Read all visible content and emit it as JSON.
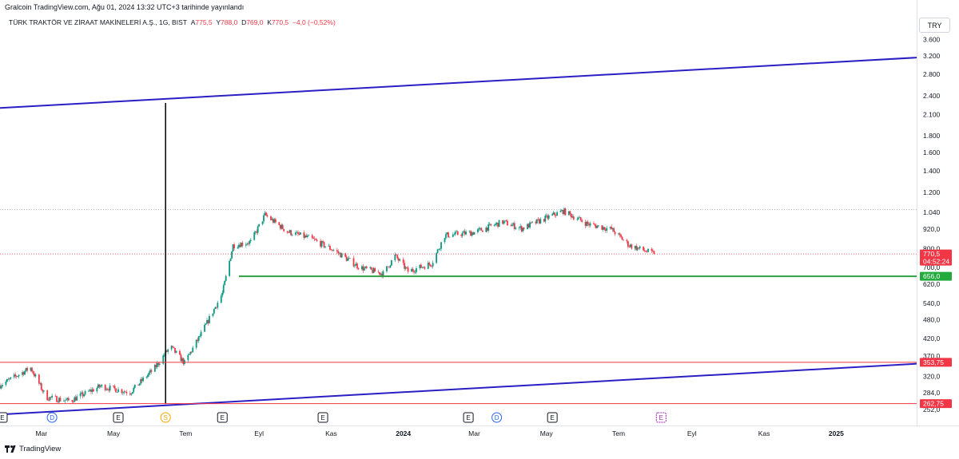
{
  "header": {
    "published": "Gralcoin TradingView.com, Ağu 01, 2024 13:32 UTC+3 tarihinde yayınlandı",
    "symbol": "TÜRK TRAKTÖR VE ZİRAAT MAKİNELERİ A.Ş., 1G, BIST",
    "ohlc": [
      {
        "label": "A",
        "value": "775,5"
      },
      {
        "label": "Y",
        "value": "788,0"
      },
      {
        "label": "D",
        "value": "769,0"
      },
      {
        "label": "K",
        "value": "770,5"
      }
    ],
    "change": "−4,0 (−0,52%)",
    "currency": "TRY"
  },
  "branding": "TradingView",
  "colors": {
    "up": "#089981",
    "down": "#f23645",
    "channel": "#2a1fc4",
    "support": "#2ea043",
    "hline": "#f23645",
    "vline": "#000000",
    "label_green": "#22ab3c",
    "label_red": "#f23645"
  },
  "chart_data": {
    "type": "candlestick",
    "scale": "log",
    "ylim": [
      242,
      3800
    ],
    "y_ticks": [
      "3.600",
      "3.200",
      "2.800",
      "2.400",
      "2.100",
      "1.800",
      "1.600",
      "1.400",
      "1.200",
      "1.040",
      "920,0",
      "800,0",
      "700,0",
      "620,0",
      "540,0",
      "480,0",
      "420,0",
      "370,0",
      "320,0",
      "284,0",
      "252,0"
    ],
    "x_ticks": [
      {
        "label": "Mar",
        "date": "2023-03-01"
      },
      {
        "label": "May",
        "date": "2023-05-01"
      },
      {
        "label": "Tem",
        "date": "2023-07-01"
      },
      {
        "label": "Eyl",
        "date": "2023-09-01"
      },
      {
        "label": "Kas",
        "date": "2023-11-01"
      },
      {
        "label": "2024",
        "date": "2024-01-01",
        "bold": true
      },
      {
        "label": "Mar",
        "date": "2024-03-01"
      },
      {
        "label": "May",
        "date": "2024-05-01"
      },
      {
        "label": "Tem",
        "date": "2024-07-01"
      },
      {
        "label": "Eyl",
        "date": "2024-09-01"
      },
      {
        "label": "Kas",
        "date": "2024-11-01"
      },
      {
        "label": "2025",
        "date": "2025-01-01",
        "bold": true
      }
    ],
    "x_range": [
      "2023-01-25",
      "2025-03-10"
    ],
    "close_path": [
      {
        "date": "2023-01-25",
        "price": 300
      },
      {
        "date": "2023-02-20",
        "price": 340
      },
      {
        "date": "2023-03-05",
        "price": 275
      },
      {
        "date": "2023-03-25",
        "price": 268
      },
      {
        "date": "2023-04-20",
        "price": 298
      },
      {
        "date": "2023-05-15",
        "price": 285
      },
      {
        "date": "2023-06-05",
        "price": 340
      },
      {
        "date": "2023-06-18",
        "price": 396
      },
      {
        "date": "2023-06-30",
        "price": 352
      },
      {
        "date": "2023-07-15",
        "price": 440
      },
      {
        "date": "2023-08-01",
        "price": 580
      },
      {
        "date": "2023-08-10",
        "price": 820
      },
      {
        "date": "2023-08-25",
        "price": 840
      },
      {
        "date": "2023-09-06",
        "price": 1020
      },
      {
        "date": "2023-09-25",
        "price": 905
      },
      {
        "date": "2023-10-15",
        "price": 860
      },
      {
        "date": "2023-11-05",
        "price": 785
      },
      {
        "date": "2023-11-25",
        "price": 700
      },
      {
        "date": "2023-12-15",
        "price": 668
      },
      {
        "date": "2023-12-25",
        "price": 760
      },
      {
        "date": "2024-01-05",
        "price": 680
      },
      {
        "date": "2024-01-25",
        "price": 720
      },
      {
        "date": "2024-02-05",
        "price": 880
      },
      {
        "date": "2024-03-01",
        "price": 900
      },
      {
        "date": "2024-03-25",
        "price": 970
      },
      {
        "date": "2024-04-10",
        "price": 925
      },
      {
        "date": "2024-05-15",
        "price": 1050
      },
      {
        "date": "2024-06-05",
        "price": 955
      },
      {
        "date": "2024-06-25",
        "price": 920
      },
      {
        "date": "2024-07-10",
        "price": 820
      },
      {
        "date": "2024-07-31",
        "price": 770.5
      }
    ],
    "drawings": {
      "channel_upper": {
        "from": {
          "date": "2023-01-25",
          "price": 2200
        },
        "to": {
          "date": "2025-03-10",
          "price": 3160
        }
      },
      "channel_lower": {
        "from": {
          "date": "2023-01-25",
          "price": 243
        },
        "to": {
          "date": "2025-03-10",
          "price": 350
        }
      },
      "vertical_line": {
        "date": "2023-06-14",
        "from_price": 262,
        "to_price": 2280
      },
      "support": {
        "from_date": "2023-08-15",
        "price": 656.0,
        "label": "656,0"
      },
      "hlines": [
        {
          "price": 353.75,
          "label": "353,75"
        },
        {
          "price": 262.75,
          "label": "262,75"
        }
      ],
      "dotted_levels": [
        {
          "price": 1060
        },
        {
          "price": 770.5
        }
      ]
    },
    "price_label": {
      "price": 770.5,
      "label": "770,5",
      "countdown": "04:52:24"
    },
    "events": [
      {
        "date": "2023-01-27",
        "letter": "E",
        "kind": "earnings"
      },
      {
        "date": "2023-03-10",
        "letter": "D",
        "kind": "dividend"
      },
      {
        "date": "2023-05-05",
        "letter": "E",
        "kind": "earnings"
      },
      {
        "date": "2023-06-14",
        "letter": "S",
        "kind": "split"
      },
      {
        "date": "2023-08-01",
        "letter": "E",
        "kind": "earnings"
      },
      {
        "date": "2023-10-25",
        "letter": "E",
        "kind": "earnings"
      },
      {
        "date": "2024-02-25",
        "letter": "E",
        "kind": "earnings"
      },
      {
        "date": "2024-03-20",
        "letter": "D",
        "kind": "dividend"
      },
      {
        "date": "2024-05-06",
        "letter": "E",
        "kind": "earnings"
      },
      {
        "date": "2024-08-06",
        "letter": "E",
        "kind": "upcoming"
      }
    ]
  }
}
